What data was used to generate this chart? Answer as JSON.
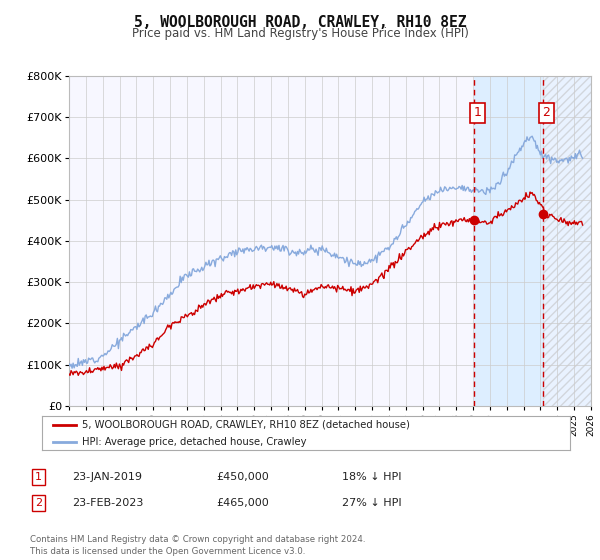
{
  "title": "5, WOOLBOROUGH ROAD, CRAWLEY, RH10 8EZ",
  "subtitle": "Price paid vs. HM Land Registry's House Price Index (HPI)",
  "xlim": [
    1995,
    2026
  ],
  "ylim": [
    0,
    800000
  ],
  "yticks": [
    0,
    100000,
    200000,
    300000,
    400000,
    500000,
    600000,
    700000,
    800000
  ],
  "ytick_labels": [
    "£0",
    "£100K",
    "£200K",
    "£300K",
    "£400K",
    "£500K",
    "£600K",
    "£700K",
    "£800K"
  ],
  "xticks": [
    1995,
    1996,
    1997,
    1998,
    1999,
    2000,
    2001,
    2002,
    2003,
    2004,
    2005,
    2006,
    2007,
    2008,
    2009,
    2010,
    2011,
    2012,
    2013,
    2014,
    2015,
    2016,
    2017,
    2018,
    2019,
    2020,
    2021,
    2022,
    2023,
    2024,
    2025,
    2026
  ],
  "sale1_x": 2019.06,
  "sale1_y": 450000,
  "sale2_x": 2023.15,
  "sale2_y": 465000,
  "vline1_x": 2019.06,
  "vline2_x": 2023.15,
  "hpi_color": "#88aadd",
  "sale_color": "#cc0000",
  "background_color": "#ffffff",
  "plot_bg_color": "#f7f7ff",
  "highlight_bg_color": "#ddeeff",
  "grid_color": "#cccccc",
  "legend_label_sale": "5, WOOLBOROUGH ROAD, CRAWLEY, RH10 8EZ (detached house)",
  "legend_label_hpi": "HPI: Average price, detached house, Crawley",
  "annotation1_label": "1",
  "annotation2_label": "2",
  "note1_date": "23-JAN-2019",
  "note1_price": "£450,000",
  "note1_hpi": "18% ↓ HPI",
  "note2_date": "23-FEB-2023",
  "note2_price": "£465,000",
  "note2_hpi": "27% ↓ HPI",
  "footnote": "Contains HM Land Registry data © Crown copyright and database right 2024.\nThis data is licensed under the Open Government Licence v3.0."
}
